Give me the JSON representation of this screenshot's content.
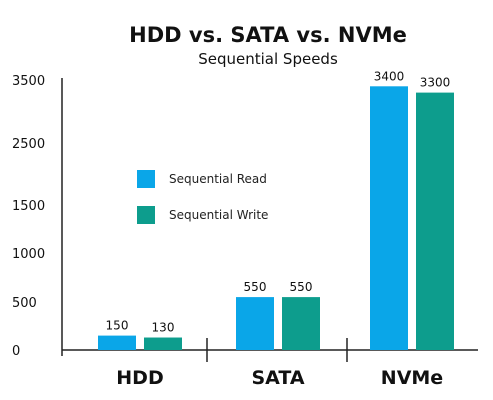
{
  "chart_data": {
    "type": "bar",
    "title": "HDD vs. SATA vs. NVMe",
    "subtitle": "Sequential Speeds",
    "xlabel": "",
    "ylabel": "",
    "categories": [
      "HDD",
      "SATA",
      "NVMe"
    ],
    "series": [
      {
        "name": "Sequential Read",
        "values": [
          150,
          550,
          3400
        ],
        "color": "#0aa6e8"
      },
      {
        "name": "Sequential Write",
        "values": [
          130,
          550,
          3300
        ],
        "color": "#0d9d8d"
      }
    ],
    "ylim": [
      0,
      3500
    ],
    "yticks": [
      0,
      500,
      1000,
      1500,
      2500,
      3500
    ],
    "ytick_labels": [
      "0",
      "500",
      "1000",
      "1500",
      "2500",
      "3500"
    ],
    "data_labels": true,
    "grid": false,
    "legend": "upper-left inside plot"
  }
}
